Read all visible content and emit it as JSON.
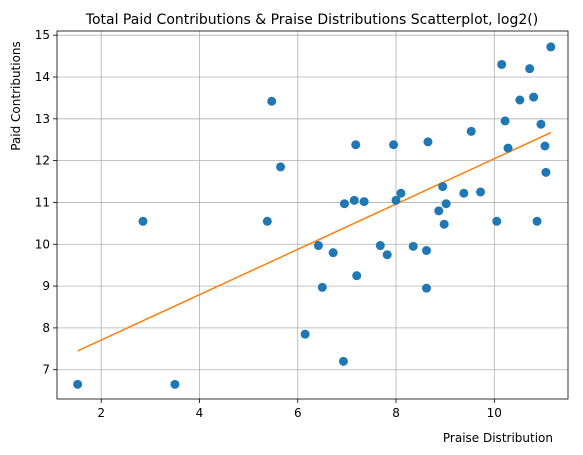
{
  "chart_data": {
    "type": "scatter",
    "title": "Total Paid Contributions & Praise Distributions Scatterplot, log2()",
    "xlabel": "Praise Distribution",
    "ylabel": "Paid Contributions",
    "xlim": [
      1.1,
      11.5
    ],
    "ylim": [
      6.3,
      15.1
    ],
    "xticks": [
      2,
      4,
      6,
      8,
      10
    ],
    "yticks": [
      7,
      8,
      9,
      10,
      11,
      12,
      13,
      14,
      15
    ],
    "grid": true,
    "colors": {
      "points": "#1f77b4",
      "trend": "#ff7f0e"
    },
    "points": [
      [
        1.52,
        6.65
      ],
      [
        2.85,
        10.55
      ],
      [
        3.5,
        6.65
      ],
      [
        5.38,
        10.55
      ],
      [
        5.47,
        13.42
      ],
      [
        5.65,
        11.85
      ],
      [
        6.15,
        7.85
      ],
      [
        6.42,
        9.97
      ],
      [
        6.5,
        8.97
      ],
      [
        6.72,
        9.8
      ],
      [
        6.93,
        7.2
      ],
      [
        6.95,
        10.97
      ],
      [
        7.15,
        11.05
      ],
      [
        7.18,
        12.38
      ],
      [
        7.2,
        9.25
      ],
      [
        7.35,
        11.02
      ],
      [
        7.68,
        9.97
      ],
      [
        7.82,
        9.75
      ],
      [
        7.95,
        12.38
      ],
      [
        8.0,
        11.05
      ],
      [
        8.1,
        11.22
      ],
      [
        8.35,
        9.95
      ],
      [
        8.62,
        9.85
      ],
      [
        8.62,
        8.95
      ],
      [
        8.65,
        12.45
      ],
      [
        8.87,
        10.8
      ],
      [
        8.95,
        11.38
      ],
      [
        8.98,
        10.48
      ],
      [
        9.02,
        10.97
      ],
      [
        9.38,
        11.22
      ],
      [
        9.53,
        12.7
      ],
      [
        9.72,
        11.25
      ],
      [
        10.05,
        10.55
      ],
      [
        10.15,
        14.3
      ],
      [
        10.22,
        12.95
      ],
      [
        10.28,
        12.3
      ],
      [
        10.52,
        13.45
      ],
      [
        10.72,
        14.2
      ],
      [
        10.8,
        13.52
      ],
      [
        10.87,
        10.55
      ],
      [
        10.95,
        12.87
      ],
      [
        11.03,
        12.35
      ],
      [
        11.05,
        11.72
      ],
      [
        11.15,
        14.72
      ]
    ],
    "trend_line": {
      "x": [
        1.52,
        11.15
      ],
      "y": [
        7.45,
        12.67
      ]
    }
  }
}
